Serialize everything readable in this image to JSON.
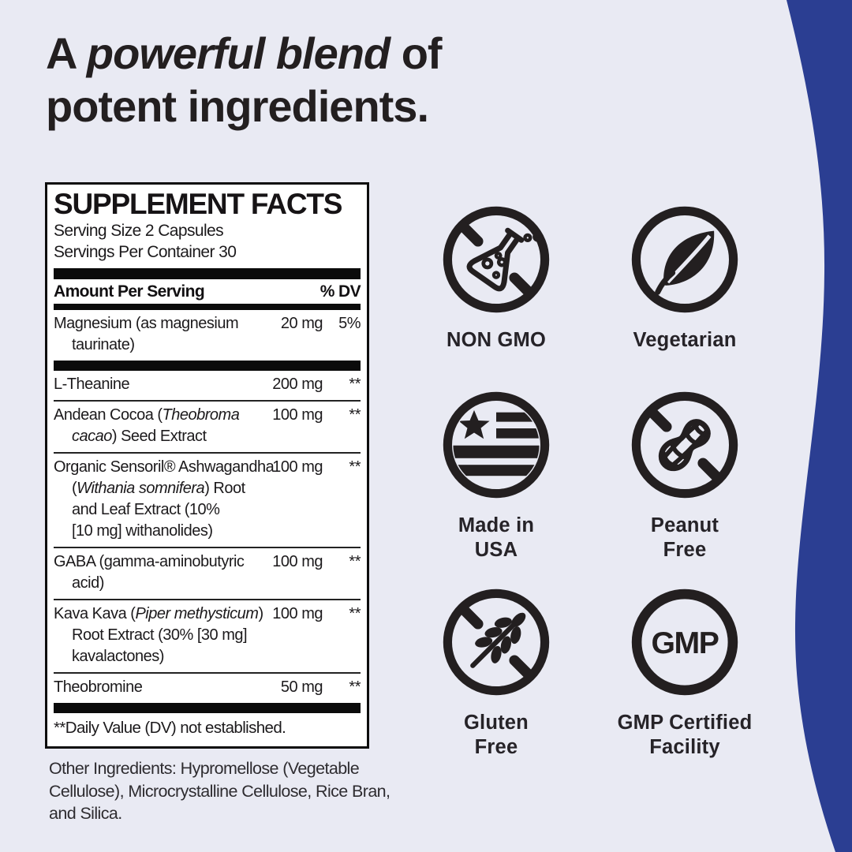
{
  "theme": {
    "bg": "#e9eaf3",
    "accent-blue": "#2b3e92",
    "ink": "#231f20",
    "panel-bg": "#ffffff"
  },
  "heading": {
    "prefix": "A ",
    "emphasis": "powerful blend",
    "suffix": " of",
    "line2": "potent ingredients."
  },
  "supplement_facts": {
    "title": "SUPPLEMENT FACTS",
    "serving_size": "Serving Size 2 Capsules",
    "servings_per_container": "Servings Per Container 30",
    "col_amount": "Amount Per Serving",
    "col_dv": "% DV",
    "rows": [
      {
        "lines": [
          [
            {
              "text": "Magnesium (as magnesium"
            }
          ],
          [
            {
              "text": "taurinate)"
            }
          ]
        ],
        "amount": "20 mg",
        "dv": "5%",
        "divider_after": "thick"
      },
      {
        "lines": [
          [
            {
              "text": "L-Theanine"
            }
          ]
        ],
        "amount": "200 mg",
        "dv": "**",
        "divider_after": "thin"
      },
      {
        "lines": [
          [
            {
              "text": "Andean Cocoa ("
            },
            {
              "text": "Theobroma",
              "italic": true
            }
          ],
          [
            {
              "text": "cacao",
              "italic": true
            },
            {
              "text": ") Seed Extract"
            }
          ]
        ],
        "amount": "100 mg",
        "dv": "**",
        "divider_after": "thin"
      },
      {
        "lines": [
          [
            {
              "text": "Organic Sensoril® Ashwagandha"
            }
          ],
          [
            {
              "text": "("
            },
            {
              "text": "Withania somnifera",
              "italic": true
            },
            {
              "text": ") Root"
            }
          ],
          [
            {
              "text": "and Leaf Extract (10%"
            }
          ],
          [
            {
              "text": "[10 mg] withanolides)"
            }
          ]
        ],
        "amount": "100 mg",
        "dv": "**",
        "divider_after": "thin"
      },
      {
        "lines": [
          [
            {
              "text": "GABA (gamma-aminobutyric"
            }
          ],
          [
            {
              "text": "acid)"
            }
          ]
        ],
        "amount": "100 mg",
        "dv": "**",
        "divider_after": "thin"
      },
      {
        "lines": [
          [
            {
              "text": "Kava Kava ("
            },
            {
              "text": "Piper methysticum",
              "italic": true
            },
            {
              "text": ")"
            }
          ],
          [
            {
              "text": "Root Extract (30% [30 mg]"
            }
          ],
          [
            {
              "text": "kavalactones)"
            }
          ]
        ],
        "amount": "100 mg",
        "dv": "**",
        "divider_after": "thin"
      },
      {
        "lines": [
          [
            {
              "text": "Theobromine"
            }
          ]
        ],
        "amount": "50 mg",
        "dv": "**",
        "divider_after": "thick"
      }
    ],
    "footnote": "**Daily Value (DV) not established."
  },
  "other_ingredients": "Other Ingredients: Hypromellose (Vegetable Cellulose), Microcrystalline Cellulose, Rice Bran, and Silica.",
  "badges": [
    {
      "id": "non-gmo",
      "line1": "NON GMO",
      "line2": ""
    },
    {
      "id": "vegetarian",
      "line1": "Vegetarian",
      "line2": ""
    },
    {
      "id": "made-in-usa",
      "line1": "Made in",
      "line2": "USA"
    },
    {
      "id": "peanut-free",
      "line1": "Peanut",
      "line2": "Free"
    },
    {
      "id": "gluten-free",
      "line1": "Gluten",
      "line2": "Free"
    },
    {
      "id": "gmp",
      "line1": "GMP Certified",
      "line2": "Facility",
      "icon_text": "GMP"
    }
  ]
}
